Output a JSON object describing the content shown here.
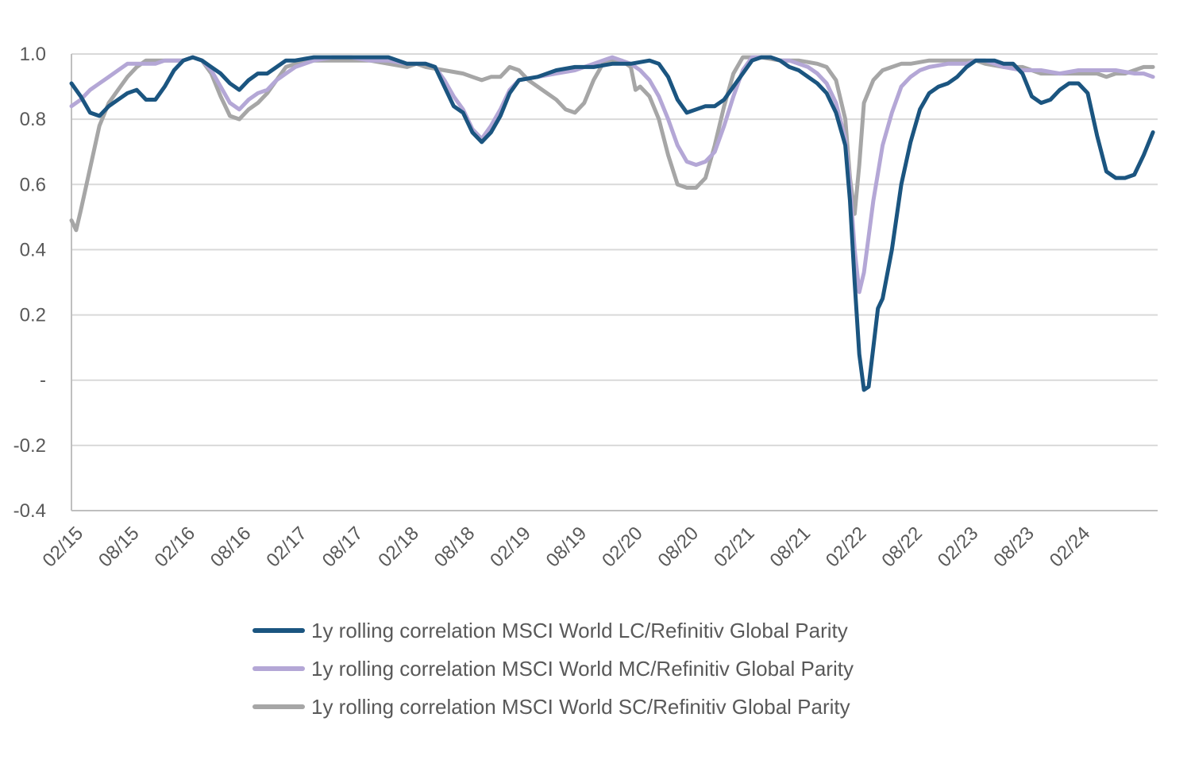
{
  "chart_data": {
    "type": "line",
    "title": "",
    "xlabel": "",
    "ylabel": "",
    "ylim": [
      -0.4,
      1.0
    ],
    "y_ticks": [
      {
        "value": 1.0,
        "label": "1.0"
      },
      {
        "value": 0.8,
        "label": "0.8"
      },
      {
        "value": 0.6,
        "label": "0.6"
      },
      {
        "value": 0.4,
        "label": "0.4"
      },
      {
        "value": 0.2,
        "label": "0.2"
      },
      {
        "value": 0.0,
        "label": "-"
      },
      {
        "value": -0.2,
        "label": "-0.2"
      },
      {
        "value": -0.4,
        "label": "-0.4"
      }
    ],
    "x_ticks": [
      "02/15",
      "08/15",
      "02/16",
      "08/16",
      "02/17",
      "08/17",
      "02/18",
      "08/18",
      "02/19",
      "08/19",
      "02/20",
      "08/20",
      "02/21",
      "08/21",
      "02/22",
      "08/22",
      "02/23",
      "08/23",
      "02/24"
    ],
    "x_unit": "months after 02/15",
    "grid": "horizontal",
    "legend_position": "bottom",
    "colors": {
      "lc": "#1b5580",
      "mc": "#b4a7d6",
      "sc": "#a6a6a6",
      "grid": "#d9d9d9",
      "axis": "#bfbfbf"
    },
    "series": [
      {
        "name": "1y rolling correlation MSCI World LC/Refinitiv Global Parity",
        "color": "#1b5580",
        "points": [
          [
            0,
            0.91
          ],
          [
            1,
            0.87
          ],
          [
            2,
            0.82
          ],
          [
            3,
            0.81
          ],
          [
            4,
            0.84
          ],
          [
            5,
            0.86
          ],
          [
            6,
            0.88
          ],
          [
            7,
            0.89
          ],
          [
            8,
            0.86
          ],
          [
            9,
            0.86
          ],
          [
            10,
            0.9
          ],
          [
            11,
            0.95
          ],
          [
            12,
            0.98
          ],
          [
            13,
            0.99
          ],
          [
            14,
            0.98
          ],
          [
            15,
            0.96
          ],
          [
            16,
            0.94
          ],
          [
            17,
            0.91
          ],
          [
            18,
            0.89
          ],
          [
            19,
            0.92
          ],
          [
            20,
            0.94
          ],
          [
            21,
            0.94
          ],
          [
            22,
            0.96
          ],
          [
            23,
            0.98
          ],
          [
            24,
            0.98
          ],
          [
            26,
            0.99
          ],
          [
            28,
            0.99
          ],
          [
            30,
            0.99
          ],
          [
            32,
            0.99
          ],
          [
            34,
            0.99
          ],
          [
            36,
            0.97
          ],
          [
            38,
            0.97
          ],
          [
            39,
            0.96
          ],
          [
            40,
            0.9
          ],
          [
            41,
            0.84
          ],
          [
            42,
            0.82
          ],
          [
            43,
            0.76
          ],
          [
            44,
            0.73
          ],
          [
            45,
            0.76
          ],
          [
            46,
            0.81
          ],
          [
            47,
            0.88
          ],
          [
            48,
            0.92
          ],
          [
            50,
            0.93
          ],
          [
            52,
            0.95
          ],
          [
            54,
            0.96
          ],
          [
            56,
            0.96
          ],
          [
            58,
            0.97
          ],
          [
            60,
            0.97
          ],
          [
            62,
            0.98
          ],
          [
            63,
            0.97
          ],
          [
            64,
            0.93
          ],
          [
            65,
            0.86
          ],
          [
            66,
            0.82
          ],
          [
            67,
            0.83
          ],
          [
            68,
            0.84
          ],
          [
            69,
            0.84
          ],
          [
            70,
            0.86
          ],
          [
            71,
            0.9
          ],
          [
            72,
            0.94
          ],
          [
            73,
            0.98
          ],
          [
            74,
            0.99
          ],
          [
            75,
            0.99
          ],
          [
            76,
            0.98
          ],
          [
            77,
            0.96
          ],
          [
            78,
            0.95
          ],
          [
            79,
            0.93
          ],
          [
            80,
            0.91
          ],
          [
            81,
            0.88
          ],
          [
            82,
            0.82
          ],
          [
            83,
            0.72
          ],
          [
            83.5,
            0.55
          ],
          [
            84,
            0.3
          ],
          [
            84.5,
            0.08
          ],
          [
            85,
            -0.03
          ],
          [
            85.5,
            -0.02
          ],
          [
            86,
            0.1
          ],
          [
            86.5,
            0.22
          ],
          [
            87,
            0.25
          ],
          [
            88,
            0.4
          ],
          [
            89,
            0.6
          ],
          [
            90,
            0.73
          ],
          [
            91,
            0.83
          ],
          [
            92,
            0.88
          ],
          [
            93,
            0.9
          ],
          [
            94,
            0.91
          ],
          [
            95,
            0.93
          ],
          [
            96,
            0.96
          ],
          [
            97,
            0.98
          ],
          [
            98,
            0.98
          ],
          [
            99,
            0.98
          ],
          [
            100,
            0.97
          ],
          [
            101,
            0.97
          ],
          [
            102,
            0.94
          ],
          [
            103,
            0.87
          ],
          [
            104,
            0.85
          ],
          [
            105,
            0.86
          ],
          [
            106,
            0.89
          ],
          [
            107,
            0.91
          ],
          [
            108,
            0.91
          ],
          [
            109,
            0.88
          ],
          [
            110,
            0.75
          ],
          [
            111,
            0.64
          ],
          [
            112,
            0.62
          ],
          [
            113,
            0.62
          ],
          [
            114,
            0.63
          ],
          [
            115,
            0.69
          ],
          [
            116,
            0.76
          ]
        ]
      },
      {
        "name": "1y rolling correlation MSCI World MC/Refinitiv Global Parity",
        "color": "#b4a7d6",
        "points": [
          [
            0,
            0.84
          ],
          [
            1,
            0.86
          ],
          [
            2,
            0.89
          ],
          [
            3,
            0.91
          ],
          [
            4,
            0.93
          ],
          [
            5,
            0.95
          ],
          [
            6,
            0.97
          ],
          [
            7,
            0.97
          ],
          [
            8,
            0.97
          ],
          [
            9,
            0.97
          ],
          [
            10,
            0.98
          ],
          [
            11,
            0.98
          ],
          [
            12,
            0.98
          ],
          [
            13,
            0.99
          ],
          [
            14,
            0.98
          ],
          [
            15,
            0.95
          ],
          [
            16,
            0.9
          ],
          [
            17,
            0.85
          ],
          [
            18,
            0.83
          ],
          [
            19,
            0.86
          ],
          [
            20,
            0.88
          ],
          [
            21,
            0.89
          ],
          [
            22,
            0.92
          ],
          [
            23,
            0.94
          ],
          [
            24,
            0.96
          ],
          [
            26,
            0.98
          ],
          [
            28,
            0.99
          ],
          [
            30,
            0.99
          ],
          [
            32,
            0.98
          ],
          [
            34,
            0.98
          ],
          [
            36,
            0.97
          ],
          [
            38,
            0.97
          ],
          [
            39,
            0.96
          ],
          [
            40,
            0.92
          ],
          [
            41,
            0.87
          ],
          [
            42,
            0.83
          ],
          [
            43,
            0.77
          ],
          [
            44,
            0.74
          ],
          [
            45,
            0.78
          ],
          [
            46,
            0.83
          ],
          [
            47,
            0.89
          ],
          [
            48,
            0.92
          ],
          [
            50,
            0.93
          ],
          [
            52,
            0.94
          ],
          [
            54,
            0.95
          ],
          [
            56,
            0.97
          ],
          [
            57,
            0.98
          ],
          [
            58,
            0.99
          ],
          [
            60,
            0.97
          ],
          [
            61,
            0.95
          ],
          [
            62,
            0.92
          ],
          [
            63,
            0.87
          ],
          [
            64,
            0.8
          ],
          [
            65,
            0.72
          ],
          [
            66,
            0.67
          ],
          [
            67,
            0.66
          ],
          [
            68,
            0.67
          ],
          [
            69,
            0.7
          ],
          [
            70,
            0.78
          ],
          [
            71,
            0.87
          ],
          [
            72,
            0.95
          ],
          [
            73,
            0.99
          ],
          [
            74,
            0.99
          ],
          [
            75,
            0.99
          ],
          [
            76,
            0.98
          ],
          [
            77,
            0.98
          ],
          [
            78,
            0.97
          ],
          [
            79,
            0.96
          ],
          [
            80,
            0.94
          ],
          [
            81,
            0.91
          ],
          [
            82,
            0.85
          ],
          [
            83,
            0.74
          ],
          [
            83.5,
            0.6
          ],
          [
            84,
            0.4
          ],
          [
            84.5,
            0.27
          ],
          [
            85,
            0.33
          ],
          [
            86,
            0.55
          ],
          [
            87,
            0.72
          ],
          [
            88,
            0.82
          ],
          [
            89,
            0.9
          ],
          [
            90,
            0.93
          ],
          [
            91,
            0.95
          ],
          [
            92,
            0.96
          ],
          [
            94,
            0.97
          ],
          [
            96,
            0.97
          ],
          [
            97,
            0.98
          ],
          [
            98,
            0.98
          ],
          [
            100,
            0.96
          ],
          [
            102,
            0.95
          ],
          [
            104,
            0.95
          ],
          [
            106,
            0.94
          ],
          [
            108,
            0.95
          ],
          [
            110,
            0.95
          ],
          [
            112,
            0.95
          ],
          [
            114,
            0.94
          ],
          [
            115,
            0.94
          ],
          [
            116,
            0.93
          ]
        ]
      },
      {
        "name": "1y rolling correlation MSCI World SC/Refinitiv Global Parity",
        "color": "#a6a6a6",
        "points": [
          [
            0,
            0.49
          ],
          [
            0.5,
            0.46
          ],
          [
            1,
            0.52
          ],
          [
            2,
            0.65
          ],
          [
            3,
            0.78
          ],
          [
            4,
            0.85
          ],
          [
            5,
            0.89
          ],
          [
            6,
            0.93
          ],
          [
            7,
            0.96
          ],
          [
            8,
            0.98
          ],
          [
            9,
            0.98
          ],
          [
            10,
            0.98
          ],
          [
            11,
            0.98
          ],
          [
            12,
            0.98
          ],
          [
            13,
            0.99
          ],
          [
            14,
            0.98
          ],
          [
            15,
            0.94
          ],
          [
            16,
            0.87
          ],
          [
            17,
            0.81
          ],
          [
            18,
            0.8
          ],
          [
            19,
            0.83
          ],
          [
            20,
            0.85
          ],
          [
            21,
            0.88
          ],
          [
            22,
            0.92
          ],
          [
            23,
            0.96
          ],
          [
            24,
            0.97
          ],
          [
            26,
            0.98
          ],
          [
            28,
            0.98
          ],
          [
            30,
            0.98
          ],
          [
            32,
            0.98
          ],
          [
            34,
            0.97
          ],
          [
            36,
            0.96
          ],
          [
            37,
            0.97
          ],
          [
            38,
            0.96
          ],
          [
            40,
            0.95
          ],
          [
            42,
            0.94
          ],
          [
            43,
            0.93
          ],
          [
            44,
            0.92
          ],
          [
            45,
            0.93
          ],
          [
            46,
            0.93
          ],
          [
            47,
            0.96
          ],
          [
            48,
            0.95
          ],
          [
            49,
            0.92
          ],
          [
            50,
            0.9
          ],
          [
            51,
            0.88
          ],
          [
            52,
            0.86
          ],
          [
            53,
            0.83
          ],
          [
            54,
            0.82
          ],
          [
            55,
            0.85
          ],
          [
            56,
            0.92
          ],
          [
            57,
            0.97
          ],
          [
            58,
            0.98
          ],
          [
            59,
            0.98
          ],
          [
            60,
            0.96
          ],
          [
            60.5,
            0.89
          ],
          [
            61,
            0.9
          ],
          [
            62,
            0.87
          ],
          [
            63,
            0.8
          ],
          [
            64,
            0.69
          ],
          [
            65,
            0.6
          ],
          [
            66,
            0.59
          ],
          [
            67,
            0.59
          ],
          [
            68,
            0.62
          ],
          [
            69,
            0.72
          ],
          [
            70,
            0.84
          ],
          [
            71,
            0.94
          ],
          [
            72,
            0.99
          ],
          [
            73,
            0.99
          ],
          [
            74,
            0.99
          ],
          [
            76,
            0.98
          ],
          [
            78,
            0.98
          ],
          [
            80,
            0.97
          ],
          [
            81,
            0.96
          ],
          [
            82,
            0.92
          ],
          [
            83,
            0.8
          ],
          [
            83.5,
            0.62
          ],
          [
            84,
            0.51
          ],
          [
            84.5,
            0.66
          ],
          [
            85,
            0.85
          ],
          [
            86,
            0.92
          ],
          [
            87,
            0.95
          ],
          [
            88,
            0.96
          ],
          [
            89,
            0.97
          ],
          [
            90,
            0.97
          ],
          [
            92,
            0.98
          ],
          [
            94,
            0.98
          ],
          [
            96,
            0.98
          ],
          [
            97,
            0.98
          ],
          [
            98,
            0.97
          ],
          [
            100,
            0.96
          ],
          [
            102,
            0.96
          ],
          [
            103,
            0.95
          ],
          [
            104,
            0.94
          ],
          [
            106,
            0.94
          ],
          [
            108,
            0.94
          ],
          [
            110,
            0.94
          ],
          [
            111,
            0.93
          ],
          [
            112,
            0.94
          ],
          [
            113,
            0.94
          ],
          [
            114,
            0.95
          ],
          [
            115,
            0.96
          ],
          [
            116,
            0.96
          ]
        ]
      }
    ]
  }
}
